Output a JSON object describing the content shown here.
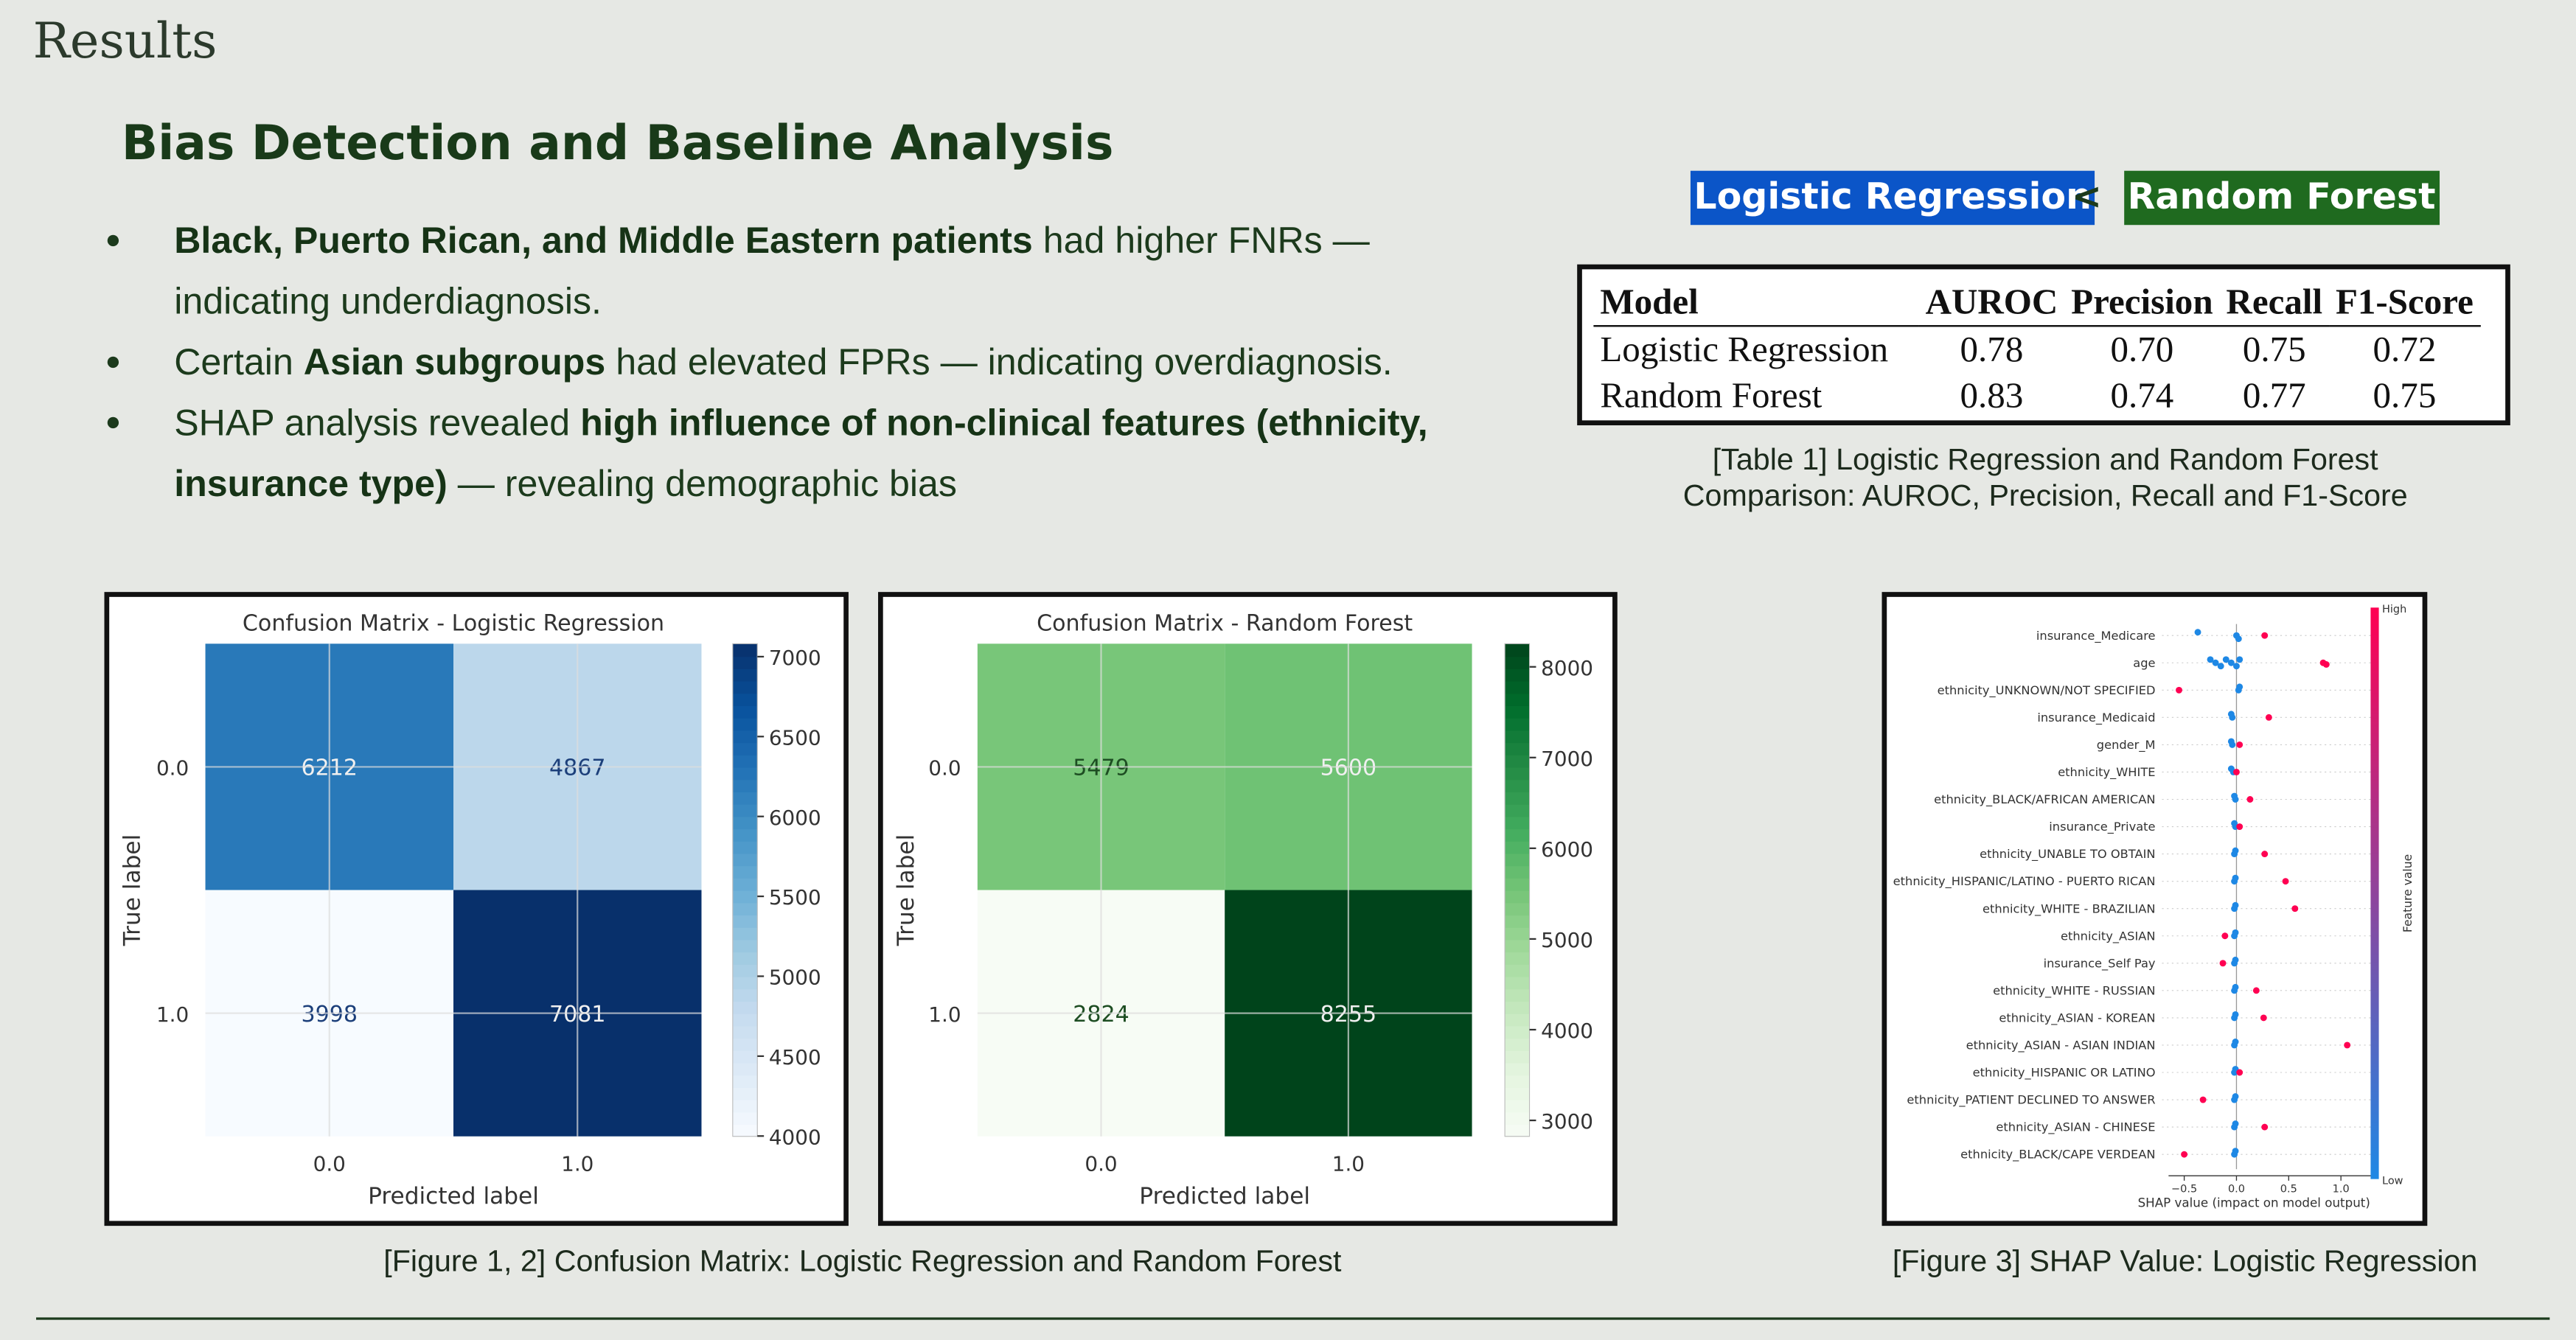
{
  "header": {
    "title": "Results"
  },
  "section_title": "Bias Detection and Baseline Analysis",
  "bullets": [
    [
      {
        "text": "Black, Puerto Rican, and Middle Eastern patients",
        "bold": true
      },
      {
        "text": " had higher FNRs — indicating underdiagnosis.",
        "bold": false
      }
    ],
    [
      {
        "text": "Certain ",
        "bold": false
      },
      {
        "text": "Asian subgroups",
        "bold": true
      },
      {
        "text": " had elevated FPRs — indicating overdiagnosis.",
        "bold": false
      }
    ],
    [
      {
        "text": "SHAP analysis revealed ",
        "bold": false
      },
      {
        "text": "high influence of non-clinical features (ethnicity, insurance type)",
        "bold": true
      },
      {
        "text": " — revealing demographic bias",
        "bold": false
      }
    ]
  ],
  "comparison": {
    "left": "Logistic Regression",
    "operator": "<",
    "right": "Random Forest",
    "left_color": "#0b55c8",
    "right_color": "#1f6a1f"
  },
  "table": {
    "header": [
      "Model",
      "AUROC",
      "Precision",
      "Recall",
      "F1-Score"
    ],
    "rows": [
      [
        "Logistic Regression",
        "0.78",
        "0.70",
        "0.75",
        "0.72"
      ],
      [
        "Random Forest",
        "0.83",
        "0.74",
        "0.77",
        "0.75"
      ]
    ],
    "caption": "[Table 1] Logistic Regression and Random Forest Comparison: AUROC, Precision, Recall and F1-Score"
  },
  "chart_data": [
    {
      "type": "heatmap",
      "title": "Confusion Matrix - Logistic Regression",
      "xlabel": "Predicted label",
      "ylabel": "True label",
      "x_categories": [
        "0.0",
        "1.0"
      ],
      "y_categories": [
        "0.0",
        "1.0"
      ],
      "values": [
        [
          6212,
          4867
        ],
        [
          3998,
          7081
        ]
      ],
      "colormap": "Blues",
      "colorbar_lim": [
        3998,
        7081
      ],
      "colorbar_ticks": [
        4000,
        4500,
        5000,
        5500,
        6000,
        6500,
        7000
      ]
    },
    {
      "type": "heatmap",
      "title": "Confusion Matrix - Random Forest",
      "xlabel": "Predicted label",
      "ylabel": "True label",
      "x_categories": [
        "0.0",
        "1.0"
      ],
      "y_categories": [
        "0.0",
        "1.0"
      ],
      "values": [
        [
          5479,
          5600
        ],
        [
          2824,
          8255
        ]
      ],
      "colormap": "Greens",
      "colorbar_lim": [
        2824,
        8255
      ],
      "colorbar_ticks": [
        3000,
        4000,
        5000,
        6000,
        7000,
        8000
      ]
    },
    {
      "type": "beeswarm",
      "xlabel": "SHAP value (impact on model output)",
      "colorbar_label": "Feature value",
      "high_label": "High",
      "low_label": "Low",
      "low_color": "#1e88e5",
      "high_color": "#ff0052",
      "features": [
        "insurance_Medicare",
        "age",
        "ethnicity_UNKNOWN/NOT SPECIFIED",
        "insurance_Medicaid",
        "gender_M",
        "ethnicity_WHITE",
        "ethnicity_BLACK/AFRICAN AMERICAN",
        "insurance_Private",
        "ethnicity_UNABLE TO OBTAIN",
        "ethnicity_HISPANIC/LATINO - PUERTO RICAN",
        "ethnicity_WHITE - BRAZILIAN",
        "ethnicity_ASIAN",
        "insurance_Self Pay",
        "ethnicity_WHITE - RUSSIAN",
        "ethnicity_ASIAN - KOREAN",
        "ethnicity_ASIAN - ASIAN INDIAN",
        "ethnicity_HISPANIC OR LATINO",
        "ethnicity_PATIENT DECLINED TO ANSWER",
        "ethnicity_ASIAN - CHINESE",
        "ethnicity_BLACK/CAPE VERDEAN"
      ],
      "low_values": [
        [
          -0.37,
          0.0,
          0.02
        ],
        [
          -0.25,
          -0.2,
          -0.15,
          -0.1,
          -0.05,
          0.0,
          0.03
        ],
        [
          0.03,
          0.02
        ],
        [
          -0.05,
          -0.04
        ],
        [
          -0.05,
          -0.04
        ],
        [
          -0.05,
          -0.03
        ],
        [
          -0.02,
          -0.01
        ],
        [
          -0.02,
          -0.01
        ],
        [
          -0.01,
          -0.02
        ],
        [
          -0.01,
          -0.02
        ],
        [
          -0.01,
          -0.02
        ],
        [
          -0.01,
          -0.02
        ],
        [
          -0.01,
          -0.02
        ],
        [
          -0.01,
          -0.02
        ],
        [
          -0.01,
          -0.02
        ],
        [
          -0.01,
          -0.02
        ],
        [
          -0.01,
          -0.02
        ],
        [
          -0.01,
          -0.02
        ],
        [
          -0.01,
          -0.02
        ],
        [
          -0.01,
          -0.02
        ]
      ],
      "high_values": [
        [
          0.27
        ],
        [
          0.83,
          0.86
        ],
        [
          -0.55
        ],
        [
          0.31
        ],
        [
          0.03
        ],
        [
          0.0
        ],
        [
          0.13
        ],
        [
          0.03
        ],
        [
          0.27
        ],
        [
          0.47
        ],
        [
          0.56
        ],
        [
          -0.11
        ],
        [
          -0.13
        ],
        [
          0.19
        ],
        [
          0.26
        ],
        [
          1.06
        ],
        [
          0.03
        ],
        [
          -0.32
        ],
        [
          0.27
        ],
        [
          -0.5
        ]
      ],
      "xlim": [
        -0.65,
        1.3
      ],
      "xticks": [
        {
          "value": -0.5,
          "label": "−0.5"
        },
        {
          "value": 0,
          "label": "0.0"
        },
        0.5,
        {
          "value": 1,
          "label": "1.0"
        }
      ]
    }
  ],
  "captions": [
    "[Figure 1, 2] Confusion Matrix: Logistic Regression and Random Forest",
    "[Figure 3] SHAP Value: Logistic Regression"
  ]
}
